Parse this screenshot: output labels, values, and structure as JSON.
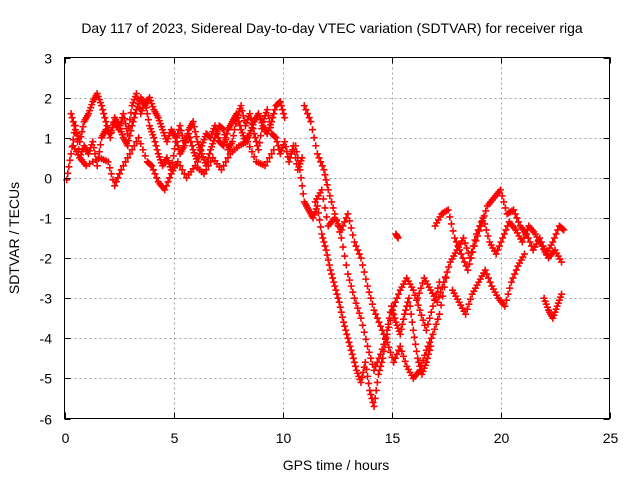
{
  "chart_data": {
    "type": "scatter",
    "title": "Day 117 of 2023, Sidereal Day-to-day VTEC variation (SDTVAR) for receiver riga",
    "xlabel": "GPS time / hours",
    "ylabel": "SDTVAR / TECUs",
    "xlim": [
      0,
      25
    ],
    "ylim": [
      -6,
      3
    ],
    "xticks": [
      0,
      5,
      10,
      15,
      20,
      25
    ],
    "yticks": [
      -6,
      -5,
      -4,
      -3,
      -2,
      -1,
      0,
      1,
      2,
      3
    ],
    "grid": true,
    "marker": "+",
    "color": "#ff0000",
    "series": [
      {
        "name": "SDTVAR",
        "segments": [
          {
            "x": [
              0.1,
              0.3,
              0.5,
              0.7,
              0.9,
              1.1,
              1.3,
              1.5,
              1.7,
              1.9,
              2.1,
              2.3,
              2.5,
              2.7,
              2.9,
              3.1,
              3.3,
              3.5,
              3.7,
              3.9,
              4.1,
              4.3,
              4.5,
              4.7,
              4.9,
              5.1,
              5.3,
              5.5,
              5.7,
              5.9,
              6.1,
              6.3,
              6.5,
              6.7,
              6.9,
              7.1,
              7.3,
              7.5,
              7.7,
              7.9,
              8.1,
              8.3,
              8.5,
              8.7,
              8.9,
              9.1,
              9.3,
              9.5,
              9.7,
              9.9,
              10.1,
              10.3,
              10.5,
              10.7,
              10.9
            ],
            "y": [
              -0.05,
              0.6,
              1.3,
              0.5,
              0.8,
              0.6,
              0.9,
              0.3,
              1.0,
              1.2,
              1.1,
              1.4,
              1.2,
              1.6,
              1.1,
              1.8,
              2.1,
              1.6,
              1.9,
              1.3,
              1.0,
              0.6,
              0.3,
              0.5,
              0.2,
              0.9,
              1.3,
              0.8,
              1.2,
              1.4,
              0.9,
              0.6,
              0.3,
              0.7,
              1.0,
              1.3,
              1.2,
              0.7,
              0.9,
              1.5,
              1.8,
              1.3,
              1.6,
              1.1,
              0.7,
              1.4,
              1.7,
              1.1,
              1.0,
              0.6,
              0.9,
              0.4,
              0.8,
              0.2,
              0.5
            ]
          },
          {
            "x": [
              0.3,
              0.5,
              0.7,
              0.9,
              1.1,
              1.3,
              1.5,
              1.7,
              1.9,
              2.1,
              2.3,
              2.5,
              2.7,
              2.9,
              3.1,
              3.3,
              3.5,
              3.7,
              3.9,
              4.1,
              4.3,
              4.5,
              4.7,
              4.9,
              5.1,
              5.3,
              5.5,
              5.7,
              5.9,
              6.1,
              6.3,
              6.5,
              6.7,
              6.9,
              7.1,
              7.3,
              7.5,
              7.7,
              7.9,
              8.1,
              8.3,
              8.5,
              8.7,
              8.9,
              9.1,
              9.3,
              9.5,
              9.7,
              9.9,
              10.1
            ],
            "y": [
              1.6,
              1.2,
              0.9,
              1.4,
              1.6,
              1.9,
              2.1,
              1.8,
              1.4,
              1.0,
              1.5,
              1.3,
              1.0,
              0.8,
              1.3,
              1.7,
              2.0,
              1.8,
              2.0,
              1.7,
              1.5,
              1.2,
              0.9,
              1.2,
              1.0,
              0.6,
              0.8,
              1.1,
              0.7,
              0.4,
              0.8,
              1.1,
              1.0,
              1.3,
              0.9,
              0.8,
              1.2,
              1.4,
              1.6,
              1.2,
              0.9,
              1.1,
              1.4,
              1.6,
              1.3,
              1.1,
              1.4,
              1.8,
              1.9,
              1.5
            ]
          },
          {
            "x": [
              0.4,
              0.7,
              1.0,
              1.6,
              2.0,
              2.3,
              2.6,
              3.0,
              3.4,
              3.8,
              4.0,
              4.3,
              4.6,
              4.9,
              5.2,
              5.6,
              6.0,
              6.4,
              6.8,
              7.2,
              7.6,
              8.0,
              8.4,
              8.8,
              9.2,
              9.6
            ],
            "y": [
              0.8,
              0.5,
              0.3,
              0.5,
              0.4,
              -0.2,
              0.2,
              0.6,
              1.0,
              0.4,
              0.3,
              -0.1,
              -0.3,
              0.1,
              0.4,
              0.0,
              0.3,
              0.1,
              0.5,
              0.2,
              0.6,
              0.8,
              0.9,
              0.4,
              0.3,
              0.7
            ]
          },
          {
            "x": [
              10.6,
              10.8,
              11.0,
              11.2,
              11.4,
              11.6,
              11.8,
              12.0,
              12.2,
              12.4,
              12.6,
              12.8,
              13.0,
              13.2,
              13.4,
              13.6,
              13.8,
              14.0,
              14.2,
              14.4,
              14.6,
              14.8,
              15.0,
              15.2,
              15.4,
              15.6,
              15.8,
              16.0,
              16.2,
              16.4,
              16.6,
              16.8
            ],
            "y": [
              0.8,
              0.2,
              -0.6,
              -0.8,
              -1.0,
              -0.7,
              -1.4,
              -1.8,
              -2.3,
              -2.7,
              -3.1,
              -3.6,
              -4.0,
              -4.4,
              -4.8,
              -5.1,
              -4.6,
              -5.3,
              -5.7,
              -4.9,
              -4.5,
              -3.8,
              -3.2,
              -3.6,
              -3.9,
              -3.4,
              -3.0,
              -3.8,
              -4.5,
              -4.9,
              -4.6,
              -4.2
            ]
          },
          {
            "x": [
              11.0,
              11.3,
              11.6,
              11.9,
              12.1,
              12.4,
              12.7,
              13.0,
              13.3,
              13.6,
              13.9,
              14.2,
              14.5,
              14.8,
              15.1,
              15.4,
              15.7,
              16.0,
              16.3,
              16.6,
              16.9,
              17.2
            ],
            "y": [
              1.8,
              1.4,
              0.6,
              0.2,
              -0.3,
              -0.9,
              -1.5,
              -2.4,
              -3.0,
              -3.5,
              -4.2,
              -4.8,
              -4.4,
              -3.9,
              -3.2,
              -2.8,
              -2.5,
              -2.8,
              -3.3,
              -3.8,
              -3.2,
              -2.6
            ]
          },
          {
            "x": [
              11.5,
              11.8,
              12.1,
              12.4,
              12.7,
              13.0,
              13.3,
              13.6,
              13.9,
              14.2,
              14.5,
              14.8,
              15.1,
              15.4,
              15.7,
              16.0,
              16.3,
              16.6,
              16.9,
              17.2,
              17.5
            ],
            "y": [
              -0.6,
              -0.3,
              -1.2,
              -1.0,
              -1.3,
              -0.9,
              -1.6,
              -2.0,
              -2.7,
              -3.3,
              -3.7,
              -4.1,
              -4.6,
              -4.2,
              -4.7,
              -5.0,
              -4.8,
              -4.3,
              -3.9,
              -3.4,
              -2.5
            ]
          },
          {
            "x": [
              17.0,
              17.3,
              17.6,
              17.9,
              18.2,
              18.5,
              18.8,
              19.1,
              19.4,
              19.7,
              20.0,
              20.3,
              20.6,
              20.9,
              21.2,
              21.5,
              21.8,
              22.1,
              22.4,
              22.7,
              22.9
            ],
            "y": [
              -1.2,
              -0.9,
              -0.8,
              -1.5,
              -1.9,
              -2.3,
              -1.7,
              -1.2,
              -0.7,
              -0.5,
              -0.3,
              -0.9,
              -0.8,
              -1.2,
              -1.4,
              -1.8,
              -1.5,
              -1.9,
              -1.6,
              -1.2,
              -1.3
            ]
          },
          {
            "x": [
              16.2,
              16.5,
              16.8,
              17.1,
              17.4,
              17.7,
              18.0,
              18.3,
              18.6,
              18.9,
              19.2,
              19.5,
              19.8,
              20.1,
              20.4,
              20.7,
              21.0,
              21.3,
              21.6,
              21.9,
              22.2,
              22.5,
              22.8
            ],
            "y": [
              -3.0,
              -2.5,
              -2.8,
              -3.1,
              -2.6,
              -2.1,
              -1.8,
              -1.5,
              -2.0,
              -1.4,
              -1.0,
              -1.6,
              -1.9,
              -1.5,
              -1.1,
              -1.3,
              -1.6,
              -1.2,
              -1.4,
              -1.7,
              -2.0,
              -1.8,
              -2.1
            ]
          },
          {
            "x": [
              17.8,
              18.1,
              18.4,
              18.7,
              19.0,
              19.3,
              19.6,
              19.9,
              20.2,
              20.5,
              20.8,
              21.1
            ],
            "y": [
              -2.8,
              -3.1,
              -3.4,
              -2.9,
              -2.6,
              -2.3,
              -2.7,
              -3.0,
              -3.2,
              -2.6,
              -2.2,
              -1.9
            ]
          },
          {
            "x": [
              15.2,
              15.3
            ],
            "y": [
              -1.4,
              -1.5
            ]
          },
          {
            "x": [
              22.0,
              22.2,
              22.4,
              22.6,
              22.8
            ],
            "y": [
              -3.0,
              -3.3,
              -3.5,
              -3.2,
              -2.9
            ]
          }
        ]
      }
    ]
  }
}
